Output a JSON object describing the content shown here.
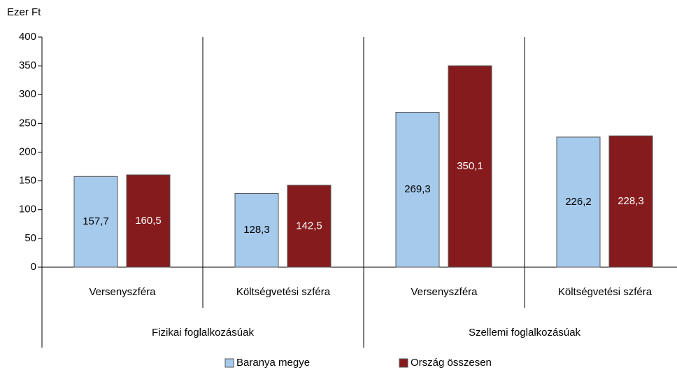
{
  "chart_data": {
    "type": "bar",
    "y_axis_label": "Ezer Ft",
    "categories": [
      "Versenyszféra",
      "Költségvetési szféra",
      "Versenyszféra",
      "Költségvetési szféra"
    ],
    "groups": [
      "Fizikai foglalkozásúak",
      "Szellemi foglalkozásúak"
    ],
    "series": [
      {
        "name": "Baranya megye",
        "color": "#a6caec",
        "values": [
          157.7,
          128.3,
          269.3,
          226.2
        ],
        "value_labels": [
          "157,7",
          "128,3",
          "269,3",
          "226,2"
        ]
      },
      {
        "name": "Ország összesen",
        "color": "#861b1d",
        "values": [
          160.5,
          142.5,
          350.1,
          228.3
        ],
        "value_labels": [
          "160,5",
          "142,5",
          "350,1",
          "228,3"
        ]
      }
    ],
    "ylim": [
      0,
      400
    ],
    "yticks": [
      0,
      50,
      100,
      150,
      200,
      250,
      300,
      350,
      400
    ],
    "legend": "bottom"
  }
}
